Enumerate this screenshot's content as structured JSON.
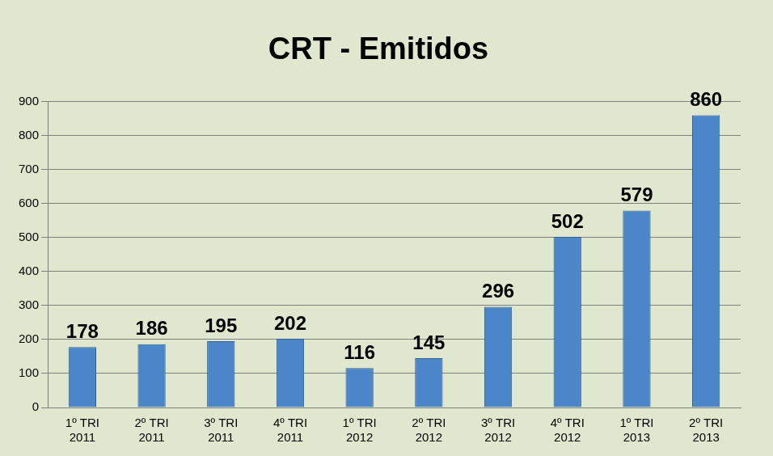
{
  "chart_data": {
    "type": "bar",
    "title": "CRT - Emitidos",
    "categories": [
      "1º TRI 2011",
      "2º TRI 2011",
      "3º TRI 2011",
      "4º TRI 2011",
      "1º TRI 2012",
      "2º TRI 2012",
      "3º TRI 2012",
      "4º TRI 2012",
      "1º TRI 2013",
      "2º TRI 2013"
    ],
    "values": [
      178,
      186,
      195,
      202,
      116,
      145,
      296,
      502,
      579,
      860
    ],
    "color": "#4a86c8",
    "ylim": [
      0,
      900
    ],
    "yticks": [
      0,
      100,
      200,
      300,
      400,
      500,
      600,
      700,
      800,
      900
    ],
    "grid": true,
    "data_labels": true
  }
}
